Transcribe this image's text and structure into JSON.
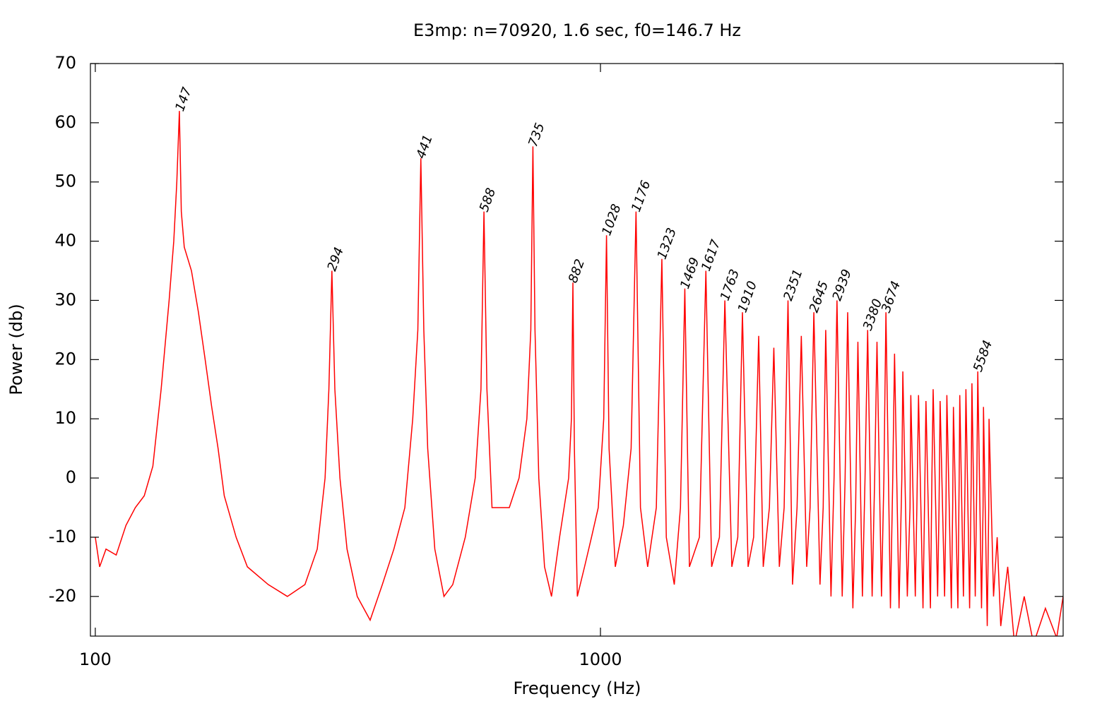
{
  "chart_data": {
    "type": "line",
    "title": "E3mp: n=70920, 1.6 sec, f0=146.7 Hz",
    "x_label": "Frequency (Hz)",
    "y_label": "Power (db)",
    "x_scale": "log",
    "color": "#ff0000",
    "xlim": [
      97.8,
      8240
    ],
    "xticks": [
      100,
      1000
    ],
    "ylim": [
      -26.7,
      70
    ],
    "yticks": [
      -20,
      -10,
      0,
      10,
      20,
      30,
      40,
      50,
      60,
      70
    ],
    "x": [
      100,
      102,
      105,
      110,
      115,
      120,
      125,
      130,
      135,
      140,
      143,
      145,
      146.7,
      148,
      150,
      155,
      160,
      165,
      170,
      175,
      180,
      190,
      200,
      220,
      240,
      260,
      275,
      285,
      290,
      294,
      298,
      305,
      315,
      330,
      350,
      370,
      390,
      410,
      425,
      435,
      441,
      447,
      455,
      470,
      490,
      510,
      540,
      565,
      580,
      588,
      596,
      610,
      630,
      660,
      690,
      715,
      728,
      735,
      742,
      755,
      775,
      800,
      830,
      865,
      876,
      882,
      888,
      900,
      930,
      960,
      990,
      1015,
      1028,
      1040,
      1070,
      1110,
      1150,
      1176,
      1200,
      1240,
      1290,
      1323,
      1350,
      1400,
      1440,
      1469,
      1500,
      1570,
      1617,
      1660,
      1720,
      1763,
      1820,
      1870,
      1910,
      1960,
      2010,
      2057,
      2100,
      2160,
      2204,
      2260,
      2310,
      2351,
      2400,
      2450,
      2498,
      2560,
      2600,
      2645,
      2720,
      2760,
      2792,
      2860,
      2900,
      2939,
      3010,
      3050,
      3086,
      3160,
      3200,
      3233,
      3300,
      3340,
      3380,
      3450,
      3490,
      3527,
      3600,
      3640,
      3674,
      3750,
      3790,
      3821,
      3900,
      3950,
      3968,
      4050,
      4100,
      4115,
      4200,
      4230,
      4262,
      4350,
      4380,
      4409,
      4500,
      4530,
      4556,
      4650,
      4680,
      4703,
      4800,
      4830,
      4850,
      4950,
      4980,
      4997,
      5100,
      5130,
      5144,
      5230,
      5270,
      5290,
      5380,
      5420,
      5437,
      5520,
      5560,
      5584,
      5680,
      5720,
      5731,
      5830,
      5870,
      5878,
      6000,
      6100,
      6200,
      6400,
      6600,
      6900,
      7200,
      7600,
      8000,
      8240
    ],
    "values": [
      -10,
      -15,
      -12,
      -13,
      -8,
      -5,
      -3,
      2,
      15,
      30,
      40,
      50,
      62,
      45,
      39,
      35,
      28,
      20,
      12,
      5,
      -3,
      -10,
      -15,
      -18,
      -20,
      -18,
      -12,
      0,
      15,
      35,
      15,
      0,
      -12,
      -20,
      -24,
      -18,
      -12,
      -5,
      10,
      25,
      54,
      25,
      5,
      -12,
      -20,
      -18,
      -10,
      0,
      15,
      45,
      15,
      -5,
      -5,
      -5,
      0,
      10,
      25,
      56,
      25,
      0,
      -15,
      -20,
      -10,
      0,
      10,
      33,
      5,
      -20,
      -15,
      -10,
      -5,
      10,
      41,
      5,
      -15,
      -8,
      5,
      45,
      -5,
      -15,
      -5,
      37,
      -10,
      -18,
      -5,
      32,
      -15,
      -10,
      35,
      -15,
      -10,
      30,
      -15,
      -10,
      28,
      -15,
      -10,
      24,
      -15,
      -5,
      22,
      -15,
      -5,
      30,
      -18,
      -5,
      24,
      -15,
      -5,
      28,
      -18,
      -5,
      25,
      -20,
      0,
      30,
      -20,
      0,
      28,
      -22,
      -5,
      23,
      -20,
      0,
      25,
      -20,
      0,
      23,
      -20,
      0,
      28,
      -22,
      0,
      21,
      -22,
      0,
      18,
      -20,
      -5,
      14,
      -20,
      -5,
      14,
      -22,
      -5,
      13,
      -22,
      0,
      15,
      -20,
      -5,
      13,
      -20,
      -5,
      14,
      -22,
      -5,
      12,
      -22,
      0,
      14,
      -20,
      0,
      15,
      -22,
      0,
      16,
      -20,
      0,
      18,
      -22,
      -5,
      12,
      -25,
      -5,
      10,
      -20,
      -10,
      -25,
      -15,
      -28,
      -20,
      -28,
      -22,
      -27,
      -20
    ],
    "annotations": [
      {
        "text": "147",
        "x": 147,
        "y": 62
      },
      {
        "text": "294",
        "x": 294,
        "y": 35
      },
      {
        "text": "441",
        "x": 441,
        "y": 54
      },
      {
        "text": "588",
        "x": 588,
        "y": 45
      },
      {
        "text": "735",
        "x": 735,
        "y": 56
      },
      {
        "text": "882",
        "x": 882,
        "y": 33
      },
      {
        "text": "1028",
        "x": 1028,
        "y": 41
      },
      {
        "text": "1176",
        "x": 1176,
        "y": 45
      },
      {
        "text": "1323",
        "x": 1323,
        "y": 37
      },
      {
        "text": "1469",
        "x": 1469,
        "y": 32
      },
      {
        "text": "1617",
        "x": 1617,
        "y": 35
      },
      {
        "text": "1763",
        "x": 1763,
        "y": 30
      },
      {
        "text": "1910",
        "x": 1910,
        "y": 28
      },
      {
        "text": "2351",
        "x": 2351,
        "y": 30
      },
      {
        "text": "2645",
        "x": 2645,
        "y": 28
      },
      {
        "text": "2939",
        "x": 2939,
        "y": 30
      },
      {
        "text": "3380",
        "x": 3380,
        "y": 25
      },
      {
        "text": "3674",
        "x": 3674,
        "y": 28
      },
      {
        "text": "5584",
        "x": 5584,
        "y": 18
      }
    ]
  }
}
